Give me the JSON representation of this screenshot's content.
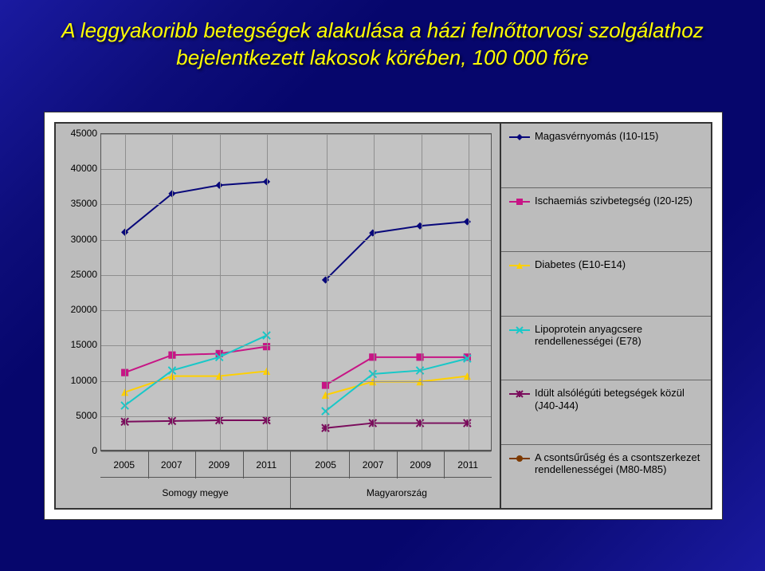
{
  "title": "A leggyakoribb betegségek alakulása a házi felnőttorvosi szolgálathoz bejelentkezett lakosok körében, 100 000 főre",
  "chart": {
    "type": "line",
    "ylabel": "",
    "ylim": [
      0,
      45000
    ],
    "ytick_step": 5000,
    "yticks": [
      0,
      5000,
      10000,
      15000,
      20000,
      25000,
      30000,
      35000,
      40000,
      45000
    ],
    "background_color": "#bcbcbc",
    "grid_color": "#8f8f8f",
    "line_width": 2,
    "marker_size": 6,
    "groups": [
      {
        "name": "Somogy megye",
        "categories": [
          "2005",
          "2007",
          "2009",
          "2011"
        ]
      },
      {
        "name": "Magyarország",
        "categories": [
          "2005",
          "2007",
          "2009",
          "2011"
        ]
      }
    ],
    "series": [
      {
        "key": "magas",
        "label": "Magasvérnyomás (I10-I15)",
        "color": "#07077a",
        "marker": "diamond",
        "values": [
          [
            31000,
            36500,
            37700,
            38200
          ],
          [
            24200,
            30900,
            31900,
            32500
          ]
        ]
      },
      {
        "key": "ischaem",
        "label": "Ischaemiás szivbetegség (I20-I25)",
        "color": "#c71585",
        "marker": "square",
        "values": [
          [
            11000,
            13500,
            13700,
            14700
          ],
          [
            9200,
            13200,
            13200,
            13200
          ]
        ]
      },
      {
        "key": "diab",
        "label": "Diabetes (E10-E14)",
        "color": "#ffd000",
        "marker": "triangle",
        "values": [
          [
            8200,
            10500,
            10500,
            11200
          ],
          [
            7800,
            9700,
            9700,
            10500
          ]
        ]
      },
      {
        "key": "lipo",
        "label": "Lipoprotein anyagcsere rendellenességei (E78)",
        "color": "#18c8c8",
        "marker": "x",
        "values": [
          [
            6300,
            11300,
            13200,
            16300
          ],
          [
            5500,
            10800,
            11300,
            13000
          ]
        ]
      },
      {
        "key": "idult",
        "label": "Idült alsólégúti betegségek közül (J40-J44)",
        "color": "#7a0c5c",
        "marker": "asterisk",
        "values": [
          [
            4000,
            4100,
            4200,
            4200
          ],
          [
            3100,
            3800,
            3800,
            3800
          ]
        ]
      },
      {
        "key": "csont",
        "label": "A csontsűrűség és a csontszerkezet rendellenességei (M80-M85)",
        "color": "#7d3a00",
        "marker": "circle",
        "values": [
          [
            null,
            null,
            null,
            null
          ],
          [
            null,
            null,
            null,
            null
          ]
        ]
      }
    ]
  },
  "colors": {
    "slide_bg_a": "#1a1aa0",
    "slide_bg_b": "#06066c",
    "title": "#ffff00",
    "panel": "#ffffff",
    "plot_border": "#333333"
  },
  "font": {
    "title_size": 26,
    "tick_size": 12,
    "legend_size": 13
  }
}
